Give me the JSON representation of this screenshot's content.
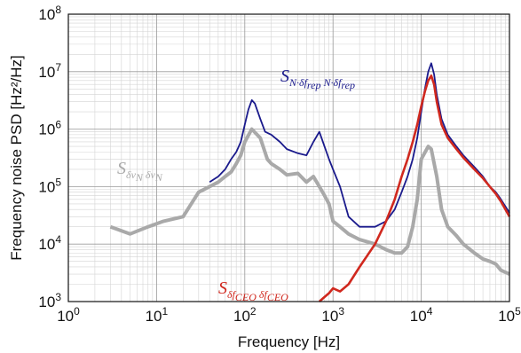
{
  "chart_data": {
    "type": "line",
    "xlabel": "Frequency [Hz]",
    "ylabel": "Frequency noise PSD [Hz²/Hz]",
    "xscale": "log",
    "yscale": "log",
    "xlim": [
      1,
      100000
    ],
    "ylim": [
      1000,
      100000000
    ],
    "grid": true,
    "x_ticks": [
      {
        "base": "10",
        "exp": "0"
      },
      {
        "base": "10",
        "exp": "1"
      },
      {
        "base": "10",
        "exp": "2"
      },
      {
        "base": "10",
        "exp": "3"
      },
      {
        "base": "10",
        "exp": "4"
      },
      {
        "base": "10",
        "exp": "5"
      }
    ],
    "y_ticks": [
      {
        "base": "10",
        "exp": "3"
      },
      {
        "base": "10",
        "exp": "4"
      },
      {
        "base": "10",
        "exp": "5"
      },
      {
        "base": "10",
        "exp": "6"
      },
      {
        "base": "10",
        "exp": "7"
      },
      {
        "base": "10",
        "exp": "8"
      }
    ],
    "series": [
      {
        "name": "Sδν_N δν_N",
        "color": "#a9a9a9",
        "x": [
          3,
          5,
          8,
          12,
          20,
          30,
          40,
          50,
          60,
          70,
          80,
          90,
          100,
          120,
          150,
          180,
          200,
          250,
          300,
          400,
          500,
          600,
          700,
          800,
          900,
          1000,
          1200,
          1500,
          2000,
          3000,
          4000,
          5000,
          6000,
          7000,
          8000,
          9000,
          10000,
          12000,
          13000,
          15000,
          17000,
          20000,
          25000,
          30000,
          40000,
          50000,
          60000,
          70000,
          80000,
          100000
        ],
        "y": [
          20000,
          15000,
          20000,
          25000,
          30000,
          80000,
          100000,
          120000,
          150000,
          180000,
          250000,
          350000,
          600000,
          1000000,
          700000,
          300000,
          250000,
          200000,
          160000,
          170000,
          120000,
          150000,
          100000,
          70000,
          50000,
          25000,
          20000,
          15000,
          12000,
          10000,
          8000,
          7000,
          7000,
          9000,
          20000,
          60000,
          300000,
          500000,
          450000,
          150000,
          40000,
          20000,
          14000,
          10000,
          7000,
          5500,
          5000,
          4500,
          3500,
          3000
        ]
      },
      {
        "name": "S_N·δf_rep N·δf_rep",
        "color": "#1a1a8c",
        "x": [
          40,
          50,
          60,
          70,
          80,
          90,
          100,
          110,
          120,
          130,
          150,
          170,
          200,
          250,
          300,
          400,
          500,
          600,
          700,
          800,
          900,
          1000,
          1200,
          1500,
          2000,
          3000,
          4000,
          5000,
          6000,
          7000,
          8000,
          9000,
          10000,
          11000,
          12000,
          13000,
          14000,
          15000,
          17000,
          20000,
          25000,
          30000,
          40000,
          50000,
          60000,
          70000,
          80000,
          90000,
          100000
        ],
        "y": [
          120000,
          150000,
          200000,
          300000,
          400000,
          600000,
          1200000,
          2200000,
          3200000,
          2800000,
          1500000,
          900000,
          800000,
          600000,
          450000,
          380000,
          350000,
          600000,
          900000,
          500000,
          300000,
          200000,
          100000,
          30000,
          20000,
          20000,
          25000,
          40000,
          80000,
          150000,
          300000,
          700000,
          2000000,
          5000000,
          10000000,
          14000000,
          9000000,
          4000000,
          1500000,
          800000,
          500000,
          350000,
          220000,
          150000,
          100000,
          80000,
          60000,
          45000,
          35000
        ]
      },
      {
        "name": "Sδf_CEO δf_CEO",
        "color": "#d0281e",
        "x": [
          700,
          800,
          900,
          1000,
          1200,
          1500,
          2000,
          3000,
          4000,
          5000,
          6000,
          7000,
          8000,
          9000,
          10000,
          11000,
          12000,
          13000,
          14000,
          15000,
          17000,
          20000,
          25000,
          30000,
          40000,
          50000,
          60000,
          70000,
          80000,
          90000,
          100000
        ],
        "y": [
          1000,
          1200,
          1400,
          1700,
          1500,
          2000,
          4000,
          10000,
          25000,
          60000,
          150000,
          300000,
          600000,
          1200000,
          2500000,
          4500000,
          7000000,
          8500000,
          6000000,
          3000000,
          1200000,
          700000,
          450000,
          320000,
          200000,
          140000,
          100000,
          75000,
          55000,
          40000,
          30000
        ]
      }
    ],
    "annotations": [
      {
        "id": "gray",
        "main": "S",
        "sub1": "δν",
        "sub1b": "N",
        "sep": " ",
        "sub2": "δν",
        "sub2b": "N",
        "color": "#a9a9a9"
      },
      {
        "id": "blue",
        "main": "S",
        "sub1": "N·δf",
        "sub1b": "rep",
        "sep": " ",
        "sub2": "N·δf",
        "sub2b": "rep",
        "color": "#1a1a8c"
      },
      {
        "id": "red",
        "main": "S",
        "sub1": "δf",
        "sub1b": "CEO",
        "sep": " ",
        "sub2": "δf",
        "sub2b": "CEO",
        "color": "#d0281e"
      }
    ]
  }
}
